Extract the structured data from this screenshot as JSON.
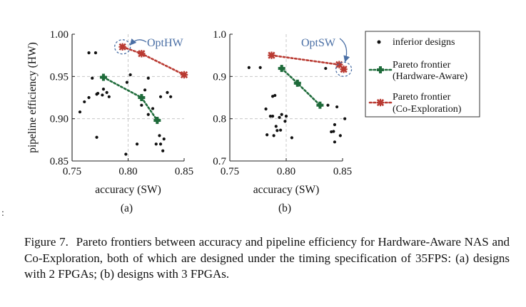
{
  "chart_data": [
    {
      "type": "scatter",
      "panel_label": "(a)",
      "xlabel": "accuracy (SW)",
      "ylabel": "pipeline efficiency (HW)",
      "xlim": [
        0.75,
        0.85
      ],
      "ylim": [
        0.85,
        1.0
      ],
      "xticks": [
        0.75,
        0.8,
        0.85
      ],
      "xtick_labels": [
        "0.75",
        "0.80",
        "0.85"
      ],
      "yticks": [
        0.85,
        0.9,
        0.95,
        1.0
      ],
      "ytick_labels": [
        "0.85",
        "0.90",
        "0.95",
        "1.00"
      ],
      "grid_x": [
        0.8
      ],
      "grid_y": [
        0.95,
        0.9
      ],
      "annotation": "OptHW",
      "annotation_target": [
        0.795,
        0.985
      ],
      "series": [
        {
          "name": "inferior designs",
          "style": "scatter",
          "x": [
            0.765,
            0.771,
            0.778,
            0.781,
            0.768,
            0.772,
            0.783,
            0.761,
            0.757,
            0.777,
            0.765,
            0.773,
            0.802,
            0.799,
            0.818,
            0.815,
            0.812,
            0.822,
            0.829,
            0.835,
            0.838,
            0.828,
            0.832,
            0.825,
            0.829,
            0.831,
            0.818,
            0.808,
            0.772,
            0.798
          ],
          "y": [
            0.978,
            0.978,
            0.935,
            0.931,
            0.948,
            0.929,
            0.926,
            0.92,
            0.908,
            0.928,
            0.925,
            0.93,
            0.952,
            0.943,
            0.948,
            0.934,
            0.916,
            0.912,
            0.926,
            0.931,
            0.926,
            0.88,
            0.876,
            0.87,
            0.87,
            0.862,
            0.905,
            0.87,
            0.878,
            0.858
          ]
        },
        {
          "name": "Pareto frontier (Hardware-Aware)",
          "style": "line",
          "color": "#1e6b3a",
          "x": [
            0.778,
            0.812,
            0.826
          ],
          "y": [
            0.949,
            0.925,
            0.898
          ]
        },
        {
          "name": "Pareto frontier (Co-Exploration)",
          "style": "line",
          "color": "#b93a32",
          "x": [
            0.795,
            0.812,
            0.85
          ],
          "y": [
            0.985,
            0.977,
            0.952
          ]
        }
      ]
    },
    {
      "type": "scatter",
      "panel_label": "(b)",
      "xlabel": "accuracy (SW)",
      "ylabel": "",
      "xlim": [
        0.75,
        0.85
      ],
      "ylim": [
        0.7,
        1.0
      ],
      "xticks": [
        0.75,
        0.8,
        0.85
      ],
      "xtick_labels": [
        "0.75",
        "0.80",
        "0.85"
      ],
      "yticks": [
        0.7,
        0.8,
        0.9,
        1.0
      ],
      "ytick_labels": [
        "0.7",
        "0.8",
        "0.9",
        "1.0"
      ],
      "grid_x": [
        0.8
      ],
      "grid_y": [
        0.9,
        0.8
      ],
      "annotation": "OptSW",
      "annotation_target": [
        0.851,
        0.917
      ],
      "series": [
        {
          "name": "inferior designs",
          "style": "scatter",
          "x": [
            0.767,
            0.777,
            0.782,
            0.788,
            0.79,
            0.786,
            0.788,
            0.794,
            0.791,
            0.796,
            0.799,
            0.792,
            0.795,
            0.789,
            0.783,
            0.805,
            0.8,
            0.837,
            0.845,
            0.852,
            0.842,
            0.84,
            0.848,
            0.843,
            0.843,
            0.835
          ],
          "y": [
            0.921,
            0.921,
            0.823,
            0.853,
            0.855,
            0.806,
            0.806,
            0.803,
            0.782,
            0.81,
            0.794,
            0.772,
            0.773,
            0.76,
            0.762,
            0.755,
            0.806,
            0.832,
            0.828,
            0.8,
            0.77,
            0.769,
            0.76,
            0.745,
            0.786,
            0.919
          ]
        },
        {
          "name": "Pareto frontier (Hardware-Aware)",
          "style": "line",
          "color": "#1e6b3a",
          "x": [
            0.796,
            0.81,
            0.83
          ],
          "y": [
            0.919,
            0.884,
            0.832
          ]
        },
        {
          "name": "Pareto frontier (Co-Exploration)",
          "style": "line",
          "color": "#b93a32",
          "x": [
            0.787,
            0.847,
            0.851
          ],
          "y": [
            0.95,
            0.928,
            0.917
          ]
        }
      ]
    }
  ],
  "legend": {
    "placement": "right",
    "entries": [
      {
        "label": "inferior designs",
        "kind": "dot"
      },
      {
        "label_lines": [
          "Pareto frontier",
          "(Hardware-Aware)"
        ],
        "kind": "hw"
      },
      {
        "label_lines": [
          "Pareto frontier",
          "(Co-Exploration)"
        ],
        "kind": "co"
      }
    ]
  },
  "colors": {
    "hardware_aware": "#1e6b3a",
    "co_exploration": "#b93a32",
    "annotation": "#4a6fa5",
    "grid": "#c8c8c8"
  },
  "stray_text": ":",
  "caption": {
    "label": "Figure 7.",
    "text": "Pareto frontiers between accuracy and pipeline efficiency for Hardware-Aware NAS and Co-Exploration, both of which are designed under the timing specification of 35FPS: (a) designs with 2 FPGAs; (b) designs with 3 FPGAs."
  }
}
